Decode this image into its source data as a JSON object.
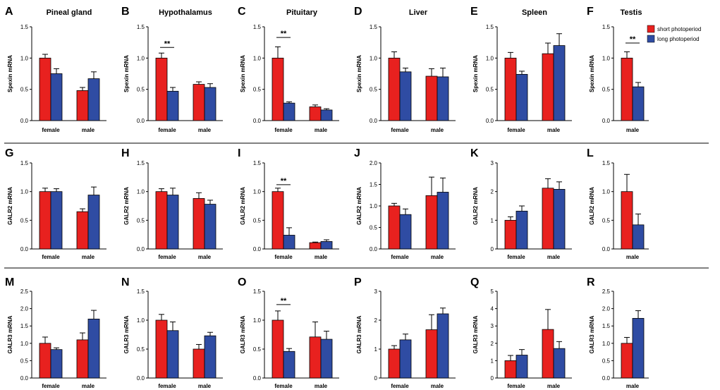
{
  "colors": {
    "short": "#e8211f",
    "long": "#2f4ca3"
  },
  "legend": {
    "short": "short photoperiod",
    "long": "long photoperiod"
  },
  "chart_data": [
    {
      "letter": "A",
      "title": "Pineal gland",
      "type": "bar",
      "ylabel": "Spexin mRNA",
      "ylim": [
        0,
        1.5
      ],
      "yticks": [
        "0.0",
        "0.5",
        "1.0",
        "1.5"
      ],
      "categories": [
        "female",
        "male"
      ],
      "series": [
        {
          "name": "short photoperiod",
          "values": [
            1.0,
            0.48
          ],
          "errors": [
            0.06,
            0.05
          ]
        },
        {
          "name": "long photoperiod",
          "values": [
            0.75,
            0.67
          ],
          "errors": [
            0.08,
            0.11
          ]
        }
      ],
      "significance": []
    },
    {
      "letter": "B",
      "title": "Hypothalamus",
      "type": "bar",
      "ylabel": "Spexin mRNA",
      "ylim": [
        0,
        1.5
      ],
      "yticks": [
        "0.0",
        "0.5",
        "1.0",
        "1.5"
      ],
      "categories": [
        "female",
        "male"
      ],
      "series": [
        {
          "name": "short photoperiod",
          "values": [
            1.0,
            0.58
          ],
          "errors": [
            0.08,
            0.04
          ]
        },
        {
          "name": "long photoperiod",
          "values": [
            0.47,
            0.53
          ],
          "errors": [
            0.06,
            0.06
          ]
        }
      ],
      "significance": [
        {
          "category": 0,
          "label": "**",
          "y": 1.17
        }
      ]
    },
    {
      "letter": "C",
      "title": "Pituitary",
      "type": "bar",
      "ylabel": "Spexin mRNA",
      "ylim": [
        0,
        1.5
      ],
      "yticks": [
        "0.0",
        "0.5",
        "1.0",
        "1.5"
      ],
      "categories": [
        "female",
        "male"
      ],
      "series": [
        {
          "name": "short photoperiod",
          "values": [
            1.0,
            0.22
          ],
          "errors": [
            0.18,
            0.03
          ]
        },
        {
          "name": "long photoperiod",
          "values": [
            0.28,
            0.17
          ],
          "errors": [
            0.02,
            0.02
          ]
        }
      ],
      "significance": [
        {
          "category": 0,
          "label": "**",
          "y": 1.33
        }
      ]
    },
    {
      "letter": "D",
      "title": "Liver",
      "type": "bar",
      "ylabel": "Spexin mRNA",
      "ylim": [
        0,
        1.5
      ],
      "yticks": [
        "0.0",
        "0.5",
        "1.0",
        "1.5"
      ],
      "categories": [
        "female",
        "male"
      ],
      "series": [
        {
          "name": "short photoperiod",
          "values": [
            1.0,
            0.71
          ],
          "errors": [
            0.1,
            0.12
          ]
        },
        {
          "name": "long photoperiod",
          "values": [
            0.78,
            0.7
          ],
          "errors": [
            0.06,
            0.14
          ]
        }
      ],
      "significance": []
    },
    {
      "letter": "E",
      "title": "Spleen",
      "type": "bar",
      "ylabel": "Spexin mRNA",
      "ylim": [
        0,
        1.5
      ],
      "yticks": [
        "0.0",
        "0.5",
        "1.0",
        "1.5"
      ],
      "categories": [
        "female",
        "male"
      ],
      "series": [
        {
          "name": "short photoperiod",
          "values": [
            1.0,
            1.07
          ],
          "errors": [
            0.09,
            0.17
          ]
        },
        {
          "name": "long photoperiod",
          "values": [
            0.74,
            1.2
          ],
          "errors": [
            0.05,
            0.19
          ]
        }
      ],
      "significance": []
    },
    {
      "letter": "F",
      "title": "Testis",
      "type": "bar",
      "ylabel": "Spexin mRNA",
      "ylim": [
        0,
        1.5
      ],
      "yticks": [
        "0.0",
        "0.5",
        "1.0",
        "1.5"
      ],
      "categories": [
        "male"
      ],
      "series": [
        {
          "name": "short photoperiod",
          "values": [
            1.0
          ],
          "errors": [
            0.1
          ]
        },
        {
          "name": "long photoperiod",
          "values": [
            0.54
          ],
          "errors": [
            0.07
          ]
        }
      ],
      "significance": [
        {
          "category": 0,
          "label": "**",
          "y": 1.24
        }
      ]
    },
    {
      "letter": "G",
      "title": "",
      "type": "bar",
      "ylabel": "GALR2 mRNA",
      "ylim": [
        0,
        1.5
      ],
      "yticks": [
        "0.0",
        "0.5",
        "1.0",
        "1.5"
      ],
      "categories": [
        "female",
        "male"
      ],
      "series": [
        {
          "name": "short photoperiod",
          "values": [
            1.0,
            0.65
          ],
          "errors": [
            0.06,
            0.05
          ]
        },
        {
          "name": "long photoperiod",
          "values": [
            1.0,
            0.94
          ],
          "errors": [
            0.05,
            0.14
          ]
        }
      ],
      "significance": []
    },
    {
      "letter": "H",
      "title": "",
      "type": "bar",
      "ylabel": "GALR2 mRNA",
      "ylim": [
        0,
        1.5
      ],
      "yticks": [
        "0.0",
        "0.5",
        "1.0",
        "1.5"
      ],
      "categories": [
        "female",
        "male"
      ],
      "series": [
        {
          "name": "short photoperiod",
          "values": [
            1.0,
            0.88
          ],
          "errors": [
            0.05,
            0.1
          ]
        },
        {
          "name": "long photoperiod",
          "values": [
            0.94,
            0.78
          ],
          "errors": [
            0.12,
            0.07
          ]
        }
      ],
      "significance": []
    },
    {
      "letter": "I",
      "title": "",
      "type": "bar",
      "ylabel": "GALR2 mRNA",
      "ylim": [
        0,
        1.5
      ],
      "yticks": [
        "0.0",
        "0.5",
        "1.0",
        "1.5"
      ],
      "categories": [
        "female",
        "male"
      ],
      "series": [
        {
          "name": "short photoperiod",
          "values": [
            1.0,
            0.11
          ],
          "errors": [
            0.06,
            0.01
          ]
        },
        {
          "name": "long photoperiod",
          "values": [
            0.24,
            0.13
          ],
          "errors": [
            0.13,
            0.03
          ]
        }
      ],
      "significance": [
        {
          "category": 0,
          "label": "**",
          "y": 1.12
        }
      ]
    },
    {
      "letter": "J",
      "title": "",
      "type": "bar",
      "ylabel": "GALR2 mRNA",
      "ylim": [
        0,
        2.0
      ],
      "yticks": [
        "0.0",
        "0.5",
        "1.0",
        "1.5",
        "2.0"
      ],
      "categories": [
        "female",
        "male"
      ],
      "series": [
        {
          "name": "short photoperiod",
          "values": [
            1.0,
            1.24
          ],
          "errors": [
            0.06,
            0.43
          ]
        },
        {
          "name": "long photoperiod",
          "values": [
            0.8,
            1.32
          ],
          "errors": [
            0.13,
            0.33
          ]
        }
      ],
      "significance": []
    },
    {
      "letter": "K",
      "title": "",
      "type": "bar",
      "ylabel": "GALR2 mRNA",
      "ylim": [
        0,
        3
      ],
      "yticks": [
        "0",
        "1",
        "2",
        "3"
      ],
      "categories": [
        "female",
        "male"
      ],
      "series": [
        {
          "name": "short photoperiod",
          "values": [
            1.0,
            2.12
          ],
          "errors": [
            0.12,
            0.33
          ]
        },
        {
          "name": "long photoperiod",
          "values": [
            1.32,
            2.08
          ],
          "errors": [
            0.18,
            0.26
          ]
        }
      ],
      "significance": []
    },
    {
      "letter": "L",
      "title": "",
      "type": "bar",
      "ylabel": "GALR2 mRNA",
      "ylim": [
        0,
        1.5
      ],
      "yticks": [
        "0.0",
        "0.5",
        "1.0",
        "1.5"
      ],
      "categories": [
        "male"
      ],
      "series": [
        {
          "name": "short photoperiod",
          "values": [
            1.0
          ],
          "errors": [
            0.3
          ]
        },
        {
          "name": "long photoperiod",
          "values": [
            0.42
          ],
          "errors": [
            0.19
          ]
        }
      ],
      "significance": []
    },
    {
      "letter": "M",
      "title": "",
      "type": "bar",
      "ylabel": "GALR3 mRNA",
      "ylim": [
        0,
        2.5
      ],
      "yticks": [
        "0.0",
        "0.5",
        "1.0",
        "1.5",
        "2.0",
        "2.5"
      ],
      "categories": [
        "female",
        "male"
      ],
      "series": [
        {
          "name": "short photoperiod",
          "values": [
            1.0,
            1.1
          ],
          "errors": [
            0.18,
            0.2
          ]
        },
        {
          "name": "long photoperiod",
          "values": [
            0.82,
            1.7
          ],
          "errors": [
            0.05,
            0.25
          ]
        }
      ],
      "significance": []
    },
    {
      "letter": "N",
      "title": "",
      "type": "bar",
      "ylabel": "GALR3 mRNA",
      "ylim": [
        0,
        1.5
      ],
      "yticks": [
        "0.0",
        "0.5",
        "1.0",
        "1.5"
      ],
      "categories": [
        "female",
        "male"
      ],
      "series": [
        {
          "name": "short photoperiod",
          "values": [
            1.0,
            0.5
          ],
          "errors": [
            0.1,
            0.08
          ]
        },
        {
          "name": "long photoperiod",
          "values": [
            0.82,
            0.73
          ],
          "errors": [
            0.15,
            0.06
          ]
        }
      ],
      "significance": []
    },
    {
      "letter": "O",
      "title": "",
      "type": "bar",
      "ylabel": "GALR3 mRNA",
      "ylim": [
        0,
        1.5
      ],
      "yticks": [
        "0.0",
        "0.5",
        "1.0",
        "1.5"
      ],
      "categories": [
        "female",
        "male"
      ],
      "series": [
        {
          "name": "short photoperiod",
          "values": [
            1.0,
            0.71
          ],
          "errors": [
            0.16,
            0.26
          ]
        },
        {
          "name": "long photoperiod",
          "values": [
            0.46,
            0.67
          ],
          "errors": [
            0.05,
            0.14
          ]
        }
      ],
      "significance": [
        {
          "category": 0,
          "label": "**",
          "y": 1.27
        }
      ]
    },
    {
      "letter": "P",
      "title": "",
      "type": "bar",
      "ylabel": "GALR3 mRNA",
      "ylim": [
        0,
        3
      ],
      "yticks": [
        "0",
        "1",
        "2",
        "3"
      ],
      "categories": [
        "female",
        "male"
      ],
      "series": [
        {
          "name": "short photoperiod",
          "values": [
            1.0,
            1.67
          ],
          "errors": [
            0.12,
            0.52
          ]
        },
        {
          "name": "long photoperiod",
          "values": [
            1.32,
            2.22
          ],
          "errors": [
            0.2,
            0.2
          ]
        }
      ],
      "significance": []
    },
    {
      "letter": "Q",
      "title": "",
      "type": "bar",
      "ylabel": "GALR3 mRNA",
      "ylim": [
        0,
        5
      ],
      "yticks": [
        "0",
        "1",
        "2",
        "3",
        "4",
        "5"
      ],
      "categories": [
        "female",
        "male"
      ],
      "series": [
        {
          "name": "short photoperiod",
          "values": [
            1.0,
            2.8
          ],
          "errors": [
            0.3,
            1.15
          ]
        },
        {
          "name": "long photoperiod",
          "values": [
            1.32,
            1.7
          ],
          "errors": [
            0.32,
            0.4
          ]
        }
      ],
      "significance": []
    },
    {
      "letter": "R",
      "title": "",
      "type": "bar",
      "ylabel": "GALR3 mRNA",
      "ylim": [
        0,
        2.5
      ],
      "yticks": [
        "0.0",
        "0.5",
        "1.0",
        "1.5",
        "2.0",
        "2.5"
      ],
      "categories": [
        "male"
      ],
      "series": [
        {
          "name": "short photoperiod",
          "values": [
            1.0
          ],
          "errors": [
            0.17
          ]
        },
        {
          "name": "long photoperiod",
          "values": [
            1.72
          ],
          "errors": [
            0.22
          ]
        }
      ],
      "significance": []
    }
  ]
}
